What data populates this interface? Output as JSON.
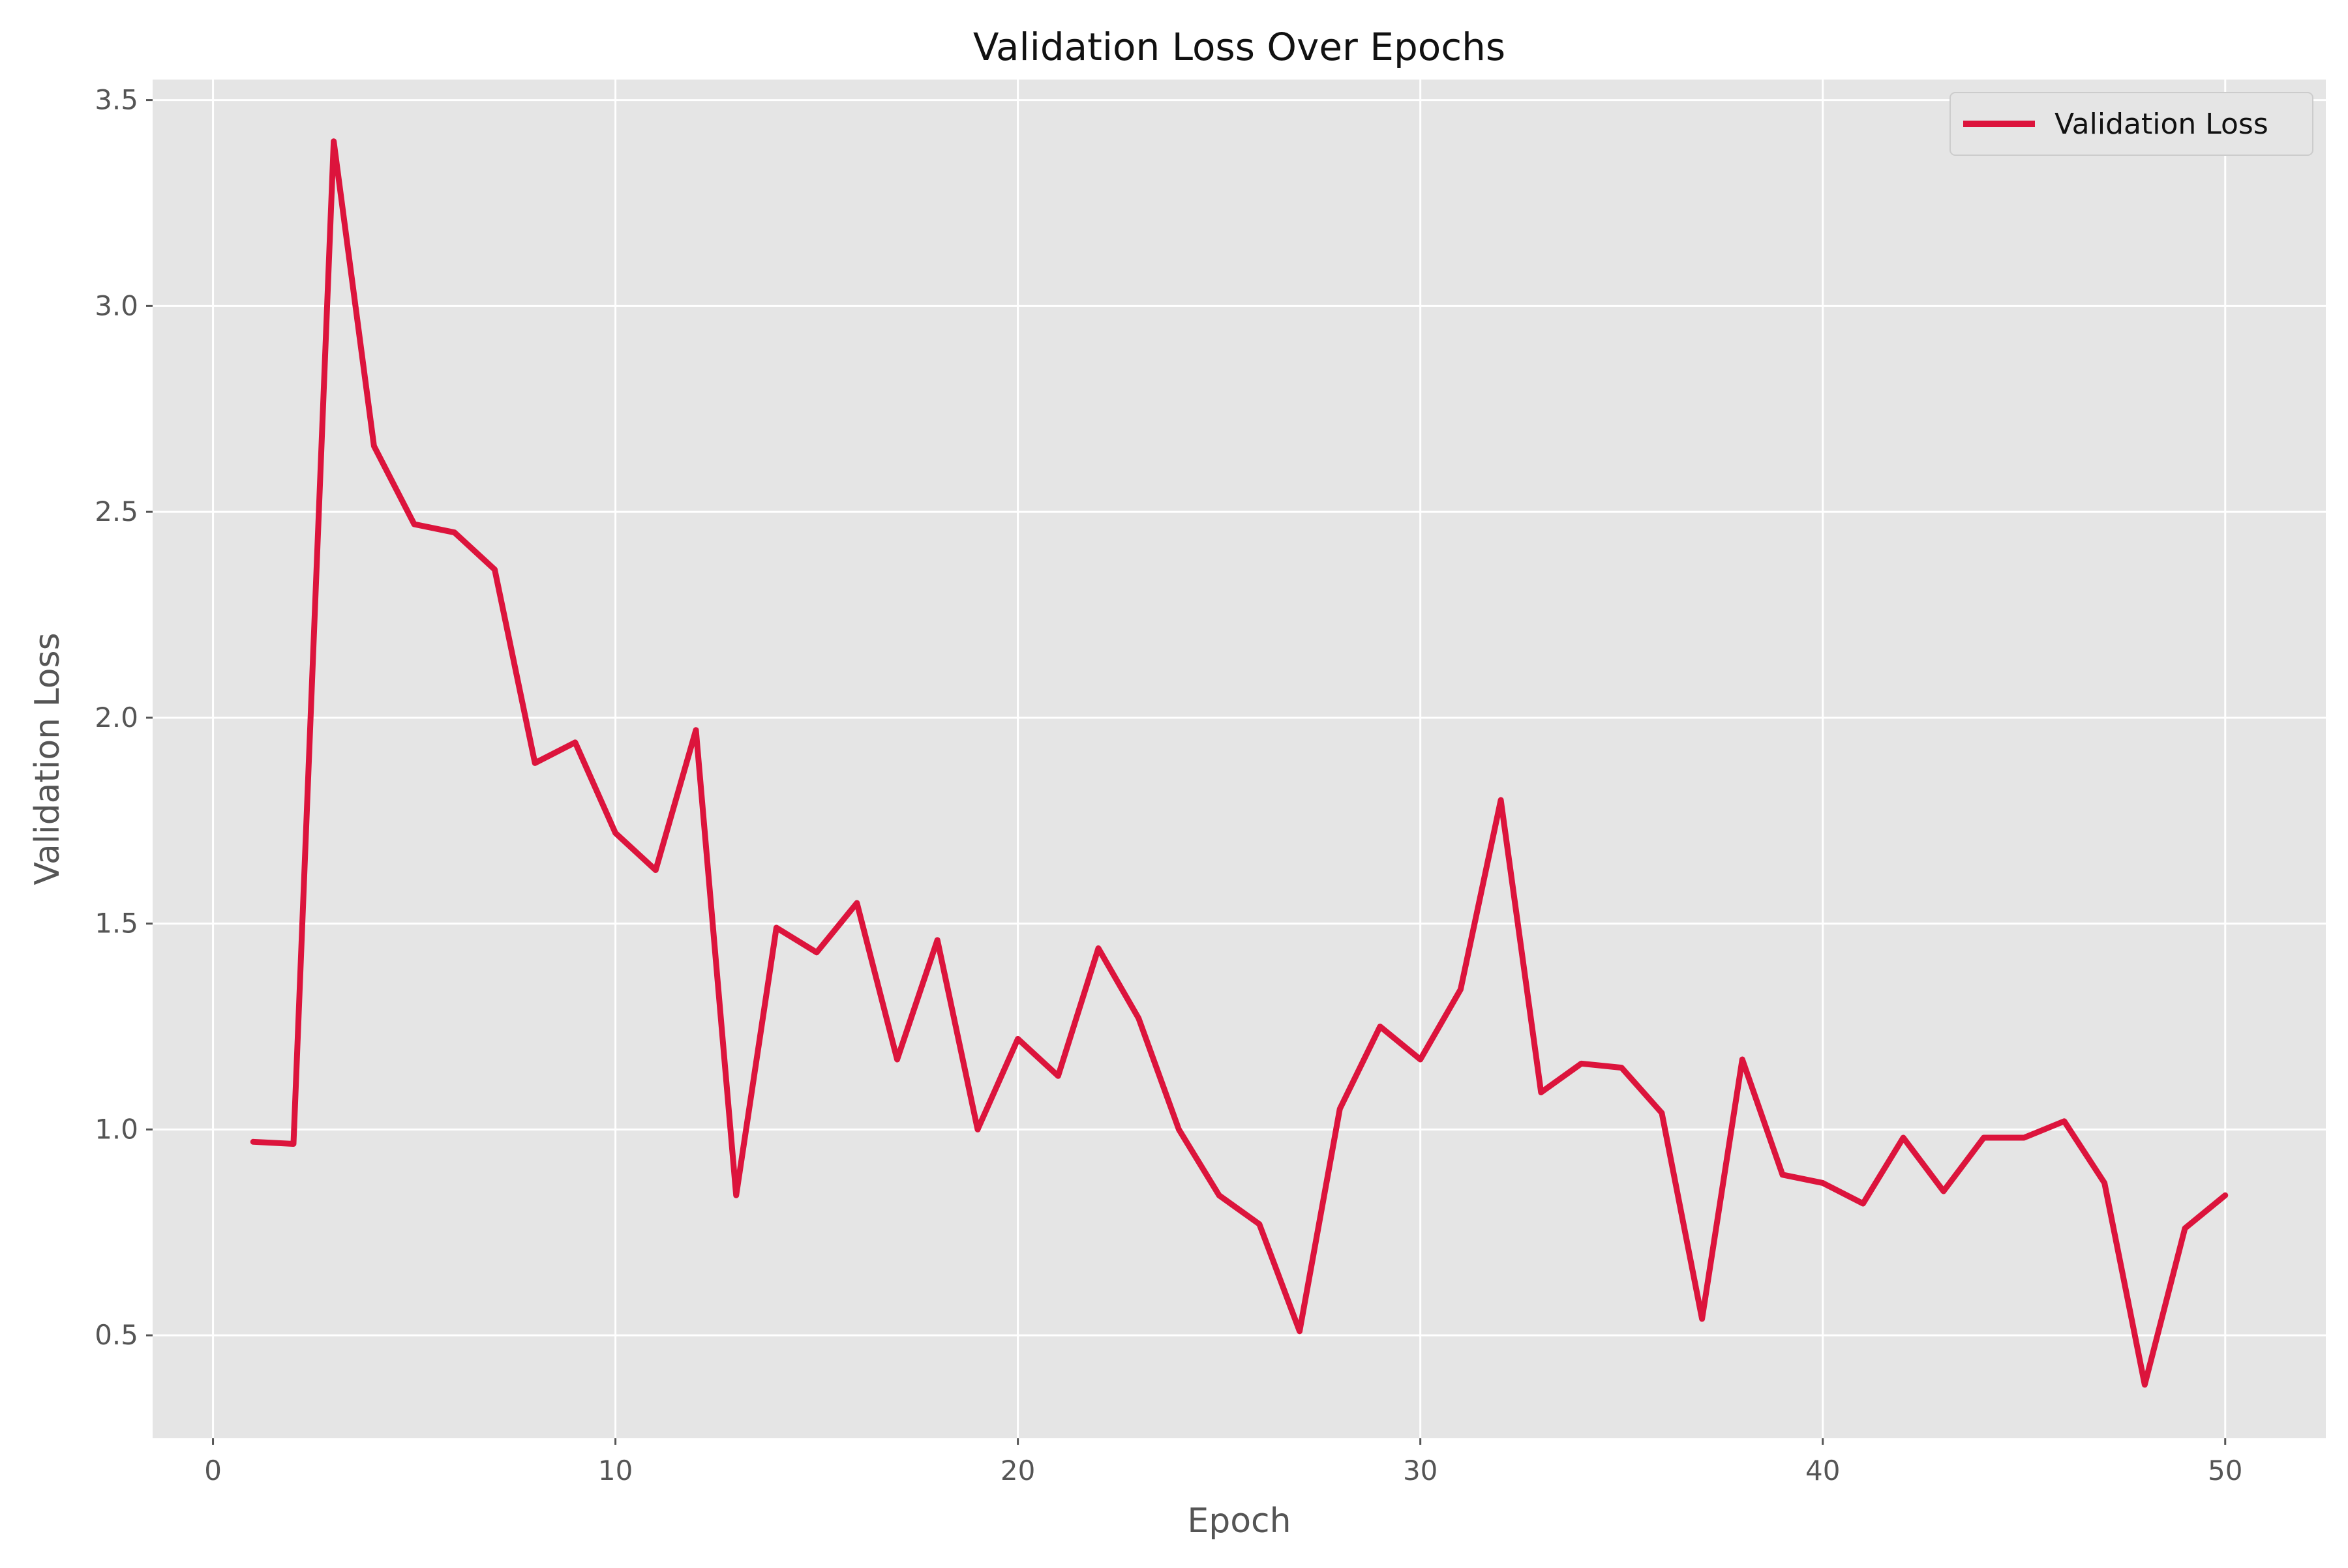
{
  "chart_data": {
    "type": "line",
    "title": "Validation Loss Over Epochs",
    "xlabel": "Epoch",
    "ylabel": "Validation Loss",
    "xlim": [
      -1.5,
      52.5
    ],
    "ylim": [
      0.25,
      3.55
    ],
    "xticks": [
      0,
      10,
      20,
      30,
      40,
      50
    ],
    "yticks": [
      0.5,
      1.0,
      1.5,
      2.0,
      2.5,
      3.0,
      3.5
    ],
    "xtick_labels": [
      "0",
      "10",
      "20",
      "30",
      "40",
      "50"
    ],
    "ytick_labels": [
      "0.5",
      "1.0",
      "1.5",
      "2.0",
      "2.5",
      "3.0",
      "3.5"
    ],
    "grid": true,
    "legend_position": "top-right",
    "colors": {
      "background": "#e5e5e5",
      "grid": "#ffffff",
      "line": "#dc143c",
      "tick": "#555555"
    },
    "x": [
      1,
      2,
      3,
      4,
      5,
      6,
      7,
      8,
      9,
      10,
      11,
      12,
      13,
      14,
      15,
      16,
      17,
      18,
      19,
      20,
      21,
      22,
      23,
      24,
      25,
      26,
      27,
      28,
      29,
      30,
      31,
      32,
      33,
      34,
      35,
      36,
      37,
      38,
      39,
      40,
      41,
      42,
      43,
      44,
      45,
      46,
      47,
      48,
      49,
      50
    ],
    "series": [
      {
        "name": "Validation Loss",
        "color": "#dc143c",
        "values": [
          0.97,
          0.965,
          3.4,
          2.66,
          2.47,
          2.45,
          2.36,
          1.89,
          1.94,
          1.72,
          1.63,
          1.97,
          0.84,
          1.49,
          1.43,
          1.55,
          1.17,
          1.46,
          1.0,
          1.22,
          1.13,
          1.44,
          1.27,
          1.0,
          0.84,
          0.77,
          0.51,
          1.05,
          1.25,
          1.17,
          1.34,
          1.8,
          1.09,
          1.16,
          1.15,
          1.04,
          0.54,
          1.17,
          0.89,
          0.87,
          0.82,
          0.98,
          0.85,
          0.98,
          0.98,
          1.02,
          0.87,
          0.38,
          0.76,
          0.84
        ]
      }
    ]
  }
}
